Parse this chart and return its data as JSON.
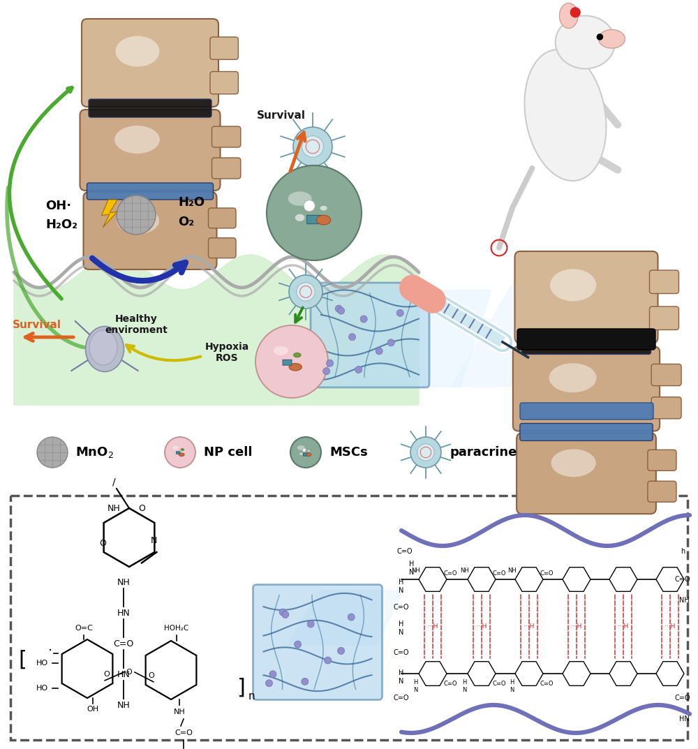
{
  "bg_color": "#ffffff",
  "fig_width": 10.0,
  "fig_height": 10.73,
  "dpi": 100,
  "green_arrow_color": "#4aaa30",
  "blue_arrow_color": "#2a3a9e",
  "orange_arrow_color": "#e06020",
  "yellow_arrow_color": "#c8c000",
  "green_dark": "#2a8a20",
  "OH_label": "OH·",
  "H2O2_label": "H₂O₂",
  "H2O_label": "H₂O",
  "O2_label": "O₂",
  "Survival_label": "Survival",
  "Healthy_label": "Healthy\nenviroment",
  "Hypoxia_label": "Hypoxia\nROS",
  "legend_MnO2": "MnO₂",
  "legend_NP": "NP cell",
  "legend_MSC": "MSCs",
  "legend_para": "paracrine",
  "dashed_box_color": "#555555",
  "spine_tan": "#d4b896",
  "spine_edge": "#8b6040",
  "disc_blue": "#4a7ab5",
  "disc_black": "#111111",
  "msc_green": "#8aaa98",
  "msc_edge": "#5a7a68",
  "np_pink": "#f0c8d0",
  "np_edge": "#c09090",
  "para_blue": "#b8d8e0",
  "para_edge": "#6a9aa8",
  "hydrogel_color": "#b0d8f0",
  "chain_color": "#7070b8",
  "membrane_color": "#aaaaaa",
  "green_bg": "#c8eac0",
  "lightning_color": "#f5c000",
  "rat_color": "#f0f0f0",
  "rat_edge": "#cccccc"
}
